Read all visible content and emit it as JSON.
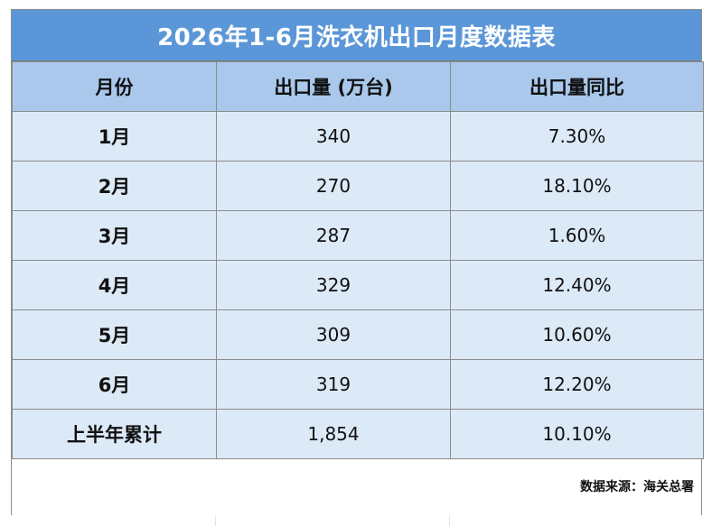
{
  "title": "2026年1-6月洗衣机出口月度数据表",
  "headers": {
    "month": "月份",
    "volume": "出口量 (万台)",
    "yoy": "出口量同比"
  },
  "rows": [
    {
      "month": "1月",
      "volume": "340",
      "yoy": "7.30%"
    },
    {
      "month": "2月",
      "volume": "270",
      "yoy": "18.10%"
    },
    {
      "month": "3月",
      "volume": "287",
      "yoy": "1.60%"
    },
    {
      "month": "4月",
      "volume": "329",
      "yoy": "12.40%"
    },
    {
      "month": "5月",
      "volume": "309",
      "yoy": "10.60%"
    },
    {
      "month": "6月",
      "volume": "319",
      "yoy": "12.20%"
    }
  ],
  "total": {
    "month": "上半年累计",
    "volume": "1,854",
    "yoy": "10.10%"
  },
  "source": "数据来源：海关总署",
  "colors": {
    "title_bg": "#5b97d8",
    "header_bg": "#a9c8ec",
    "row_bg": "#dce9f7"
  }
}
